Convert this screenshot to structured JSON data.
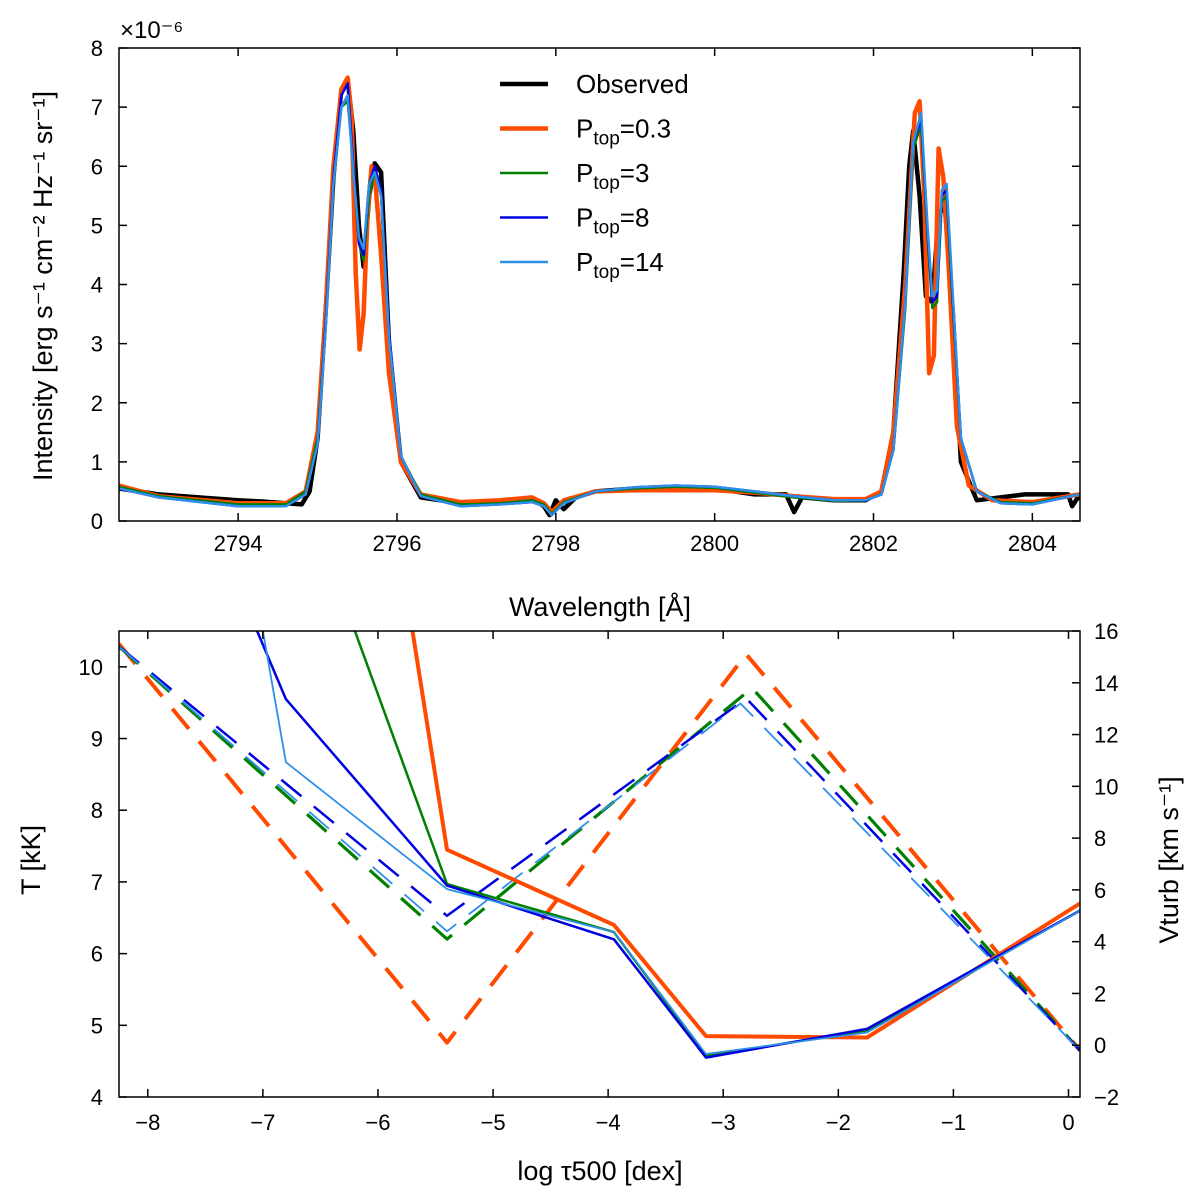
{
  "chart_data": [
    {
      "type": "line",
      "title": "",
      "xlabel": "Wavelength [Å]",
      "ylabel": "Intensity [erg s⁻¹ cm⁻² Hz⁻¹ sr⁻¹]",
      "y_multiplier": "×10⁻⁶",
      "xlim": [
        2792.5,
        2804.6
      ],
      "ylim": [
        0,
        8
      ],
      "xticks": [
        2794,
        2796,
        2798,
        2800,
        2802,
        2804
      ],
      "yticks": [
        0,
        1,
        2,
        3,
        4,
        5,
        6,
        7,
        8
      ],
      "legend": {
        "position": "top-center",
        "entries": [
          {
            "label": "Observed",
            "base": "Observed",
            "sub": "",
            "suffix": "",
            "color": "#000000"
          },
          {
            "label": "Ptop=0.3",
            "base": "P",
            "sub": "top",
            "suffix": "=0.3",
            "color": "#ff4b00"
          },
          {
            "label": "Ptop=3",
            "base": "P",
            "sub": "top",
            "suffix": "=3",
            "color": "#008000"
          },
          {
            "label": "Ptop=8",
            "base": "P",
            "sub": "top",
            "suffix": "=8",
            "color": "#0000e0"
          },
          {
            "label": "Ptop=14",
            "base": "P",
            "sub": "top",
            "suffix": "=14",
            "color": "#2e8fe8"
          }
        ]
      },
      "series": [
        {
          "name": "Observed",
          "color": "#000000",
          "width": 4.5,
          "x": [
            2792.5,
            2793.0,
            2793.5,
            2794.0,
            2794.3,
            2794.6,
            2794.8,
            2794.9,
            2795.0,
            2795.1,
            2795.2,
            2795.3,
            2795.38,
            2795.45,
            2795.52,
            2795.58,
            2795.65,
            2795.72,
            2795.8,
            2795.9,
            2796.05,
            2796.3,
            2796.8,
            2797.3,
            2797.7,
            2797.85,
            2797.92,
            2798.0,
            2798.1,
            2798.25,
            2798.5,
            2799.0,
            2799.5,
            2800.0,
            2800.5,
            2800.9,
            2801.0,
            2801.1,
            2801.5,
            2801.9,
            2802.1,
            2802.25,
            2802.38,
            2802.45,
            2802.5,
            2802.58,
            2802.66,
            2802.74,
            2802.82,
            2802.9,
            2803.0,
            2803.1,
            2803.3,
            2803.6,
            2803.9,
            2804.2,
            2804.45,
            2804.5,
            2804.6
          ],
          "y": [
            0.55,
            0.45,
            0.4,
            0.35,
            0.33,
            0.3,
            0.28,
            0.5,
            1.4,
            3.5,
            5.8,
            7.3,
            7.45,
            6.6,
            5.0,
            4.3,
            5.5,
            6.05,
            5.9,
            3.0,
            1.0,
            0.4,
            0.3,
            0.32,
            0.38,
            0.25,
            0.1,
            0.35,
            0.2,
            0.4,
            0.5,
            0.55,
            0.55,
            0.55,
            0.45,
            0.45,
            0.15,
            0.4,
            0.35,
            0.35,
            0.5,
            1.5,
            4.2,
            6.0,
            6.6,
            5.5,
            3.8,
            3.7,
            5.2,
            5.3,
            3.5,
            1.0,
            0.35,
            0.4,
            0.45,
            0.45,
            0.45,
            0.25,
            0.45
          ]
        },
        {
          "name": "Ptop=0.3",
          "color": "#ff4b00",
          "width": 4.5,
          "x": [
            2792.5,
            2793.0,
            2794.0,
            2794.6,
            2794.85,
            2795.0,
            2795.1,
            2795.2,
            2795.3,
            2795.38,
            2795.43,
            2795.48,
            2795.53,
            2795.58,
            2795.63,
            2795.68,
            2795.73,
            2795.8,
            2795.9,
            2796.05,
            2796.3,
            2796.8,
            2797.3,
            2797.7,
            2797.85,
            2797.95,
            2798.1,
            2798.5,
            2799.0,
            2799.5,
            2800.0,
            2800.5,
            2801.0,
            2801.5,
            2801.9,
            2802.1,
            2802.25,
            2802.4,
            2802.52,
            2802.58,
            2802.64,
            2802.7,
            2802.76,
            2802.82,
            2802.88,
            2802.95,
            2803.05,
            2803.2,
            2803.5,
            2804.0,
            2804.6
          ],
          "y": [
            0.6,
            0.42,
            0.3,
            0.3,
            0.5,
            1.5,
            3.5,
            6.0,
            7.3,
            7.5,
            6.8,
            4.2,
            2.9,
            3.5,
            5.2,
            6.0,
            5.7,
            4.5,
            2.5,
            1.0,
            0.45,
            0.32,
            0.35,
            0.4,
            0.3,
            0.15,
            0.35,
            0.5,
            0.52,
            0.52,
            0.52,
            0.48,
            0.42,
            0.37,
            0.37,
            0.5,
            1.5,
            4.0,
            6.9,
            7.1,
            5.5,
            2.5,
            2.8,
            6.3,
            5.8,
            4.2,
            1.6,
            0.6,
            0.35,
            0.32,
            0.45
          ]
        },
        {
          "name": "Ptop=3",
          "color": "#008000",
          "width": 2.5,
          "x": [
            2792.5,
            2793.0,
            2794.0,
            2794.6,
            2794.85,
            2795.0,
            2795.1,
            2795.2,
            2795.3,
            2795.38,
            2795.45,
            2795.52,
            2795.58,
            2795.65,
            2795.72,
            2795.8,
            2795.9,
            2796.05,
            2796.3,
            2796.8,
            2797.3,
            2797.7,
            2797.85,
            2797.95,
            2798.1,
            2798.5,
            2799.0,
            2799.5,
            2800.0,
            2800.5,
            2801.0,
            2801.5,
            2801.9,
            2802.1,
            2802.25,
            2802.4,
            2802.5,
            2802.6,
            2802.68,
            2802.74,
            2802.8,
            2802.86,
            2802.92,
            2803.0,
            2803.1,
            2803.3,
            2803.6,
            2804.0,
            2804.6
          ],
          "y": [
            0.58,
            0.42,
            0.28,
            0.28,
            0.5,
            1.4,
            3.3,
            5.7,
            7.0,
            7.1,
            6.0,
            4.7,
            4.4,
            5.5,
            5.9,
            5.5,
            3.2,
            1.1,
            0.45,
            0.28,
            0.3,
            0.35,
            0.28,
            0.12,
            0.32,
            0.5,
            0.55,
            0.58,
            0.56,
            0.48,
            0.4,
            0.34,
            0.35,
            0.45,
            1.2,
            3.6,
            6.3,
            6.7,
            4.8,
            3.6,
            3.7,
            5.4,
            5.5,
            3.6,
            1.4,
            0.5,
            0.32,
            0.3,
            0.45
          ]
        },
        {
          "name": "Ptop=8",
          "color": "#0000e0",
          "width": 2.5,
          "x": [
            2792.5,
            2793.0,
            2794.0,
            2794.6,
            2794.85,
            2795.0,
            2795.1,
            2795.2,
            2795.3,
            2795.38,
            2795.45,
            2795.52,
            2795.58,
            2795.65,
            2795.72,
            2795.8,
            2795.9,
            2796.05,
            2796.3,
            2796.8,
            2797.3,
            2797.7,
            2797.85,
            2797.95,
            2798.1,
            2798.5,
            2799.0,
            2799.5,
            2800.0,
            2800.5,
            2801.0,
            2801.5,
            2801.9,
            2802.1,
            2802.25,
            2802.4,
            2802.5,
            2802.6,
            2802.68,
            2802.74,
            2802.8,
            2802.86,
            2802.92,
            2803.0,
            2803.1,
            2803.3,
            2803.6,
            2804.0,
            2804.6
          ],
          "y": [
            0.55,
            0.4,
            0.25,
            0.25,
            0.45,
            1.3,
            3.3,
            5.8,
            7.2,
            7.4,
            6.0,
            4.7,
            4.5,
            5.7,
            6.0,
            5.6,
            3.2,
            1.1,
            0.42,
            0.25,
            0.28,
            0.32,
            0.25,
            0.1,
            0.3,
            0.5,
            0.57,
            0.6,
            0.58,
            0.5,
            0.42,
            0.35,
            0.35,
            0.45,
            1.2,
            3.7,
            6.4,
            6.8,
            4.9,
            3.7,
            3.8,
            5.5,
            5.6,
            3.7,
            1.4,
            0.5,
            0.3,
            0.28,
            0.45
          ]
        },
        {
          "name": "Ptop=14",
          "color": "#2e8fe8",
          "width": 2.5,
          "x": [
            2792.5,
            2793.0,
            2794.0,
            2794.6,
            2794.85,
            2795.0,
            2795.1,
            2795.2,
            2795.3,
            2795.38,
            2795.45,
            2795.52,
            2795.58,
            2795.65,
            2795.72,
            2795.8,
            2795.9,
            2796.05,
            2796.3,
            2796.8,
            2797.3,
            2797.7,
            2797.85,
            2797.95,
            2798.1,
            2798.5,
            2799.0,
            2799.5,
            2800.0,
            2800.5,
            2801.0,
            2801.5,
            2801.9,
            2802.1,
            2802.25,
            2802.4,
            2802.5,
            2802.6,
            2802.68,
            2802.74,
            2802.8,
            2802.86,
            2802.92,
            2803.0,
            2803.1,
            2803.3,
            2803.6,
            2804.0,
            2804.6
          ],
          "y": [
            0.55,
            0.4,
            0.25,
            0.25,
            0.45,
            1.3,
            3.2,
            5.7,
            7.0,
            7.2,
            5.9,
            4.8,
            4.6,
            5.7,
            5.9,
            5.5,
            3.1,
            1.1,
            0.42,
            0.25,
            0.28,
            0.32,
            0.25,
            0.1,
            0.3,
            0.5,
            0.57,
            0.6,
            0.58,
            0.5,
            0.42,
            0.35,
            0.35,
            0.45,
            1.2,
            3.7,
            6.4,
            6.9,
            5.0,
            3.8,
            3.9,
            5.6,
            5.7,
            3.8,
            1.4,
            0.5,
            0.3,
            0.28,
            0.45
          ]
        }
      ]
    },
    {
      "type": "line",
      "title": "",
      "xlabel": "log τ500 [dex]",
      "ylabel_left": "T [kK]",
      "ylabel_right": "Vturb [km s⁻¹]",
      "xlim": [
        -8.25,
        0.1
      ],
      "ylim_left": [
        4,
        10.5
      ],
      "ylim_right": [
        -2,
        16
      ],
      "xticks": [
        -8,
        -7,
        -6,
        -5,
        -4,
        -3,
        -2,
        -1,
        0
      ],
      "yticks_left": [
        4,
        5,
        6,
        7,
        8,
        9,
        10
      ],
      "yticks_right": [
        -2,
        0,
        2,
        4,
        6,
        8,
        10,
        12,
        14,
        16
      ],
      "temperature_series": [
        {
          "name": "Ptop=0.3",
          "color": "#ff4b00",
          "width": 4,
          "x": [
            -5.7,
            -5.4,
            -3.95,
            -3.15,
            -1.75,
            0.1
          ],
          "y": [
            10.5,
            7.45,
            6.4,
            4.85,
            4.83,
            6.7
          ]
        },
        {
          "name": "Ptop=3",
          "color": "#008000",
          "width": 2.5,
          "x": [
            -6.2,
            -5.4,
            -3.95,
            -3.15,
            -1.75,
            0.1
          ],
          "y": [
            10.5,
            6.97,
            6.3,
            4.57,
            4.93,
            6.6
          ]
        },
        {
          "name": "Ptop=8",
          "color": "#0000e0",
          "width": 2.5,
          "x": [
            -7.05,
            -6.8,
            -5.4,
            -3.95,
            -3.15,
            -1.75,
            0.1
          ],
          "y": [
            10.5,
            9.55,
            6.95,
            6.2,
            4.55,
            4.95,
            6.6
          ]
        },
        {
          "name": "Ptop=14",
          "color": "#2e8fe8",
          "width": 1.8,
          "x": [
            -7.0,
            -6.8,
            -5.4,
            -3.95,
            -3.15,
            -1.75,
            0.1
          ],
          "y": [
            10.5,
            8.67,
            6.9,
            6.3,
            4.6,
            4.9,
            6.6
          ]
        }
      ],
      "vturb_series": [
        {
          "name": "Ptop=0.3",
          "color": "#ff4b00",
          "width": 4,
          "x": [
            -8.25,
            -5.4,
            -2.8,
            0.1
          ],
          "y": [
            15.5,
            0.1,
            15.1,
            -0.2
          ]
        },
        {
          "name": "Ptop=3",
          "color": "#008000",
          "width": 3.2,
          "x": [
            -8.25,
            -5.4,
            -2.75,
            0.1
          ],
          "y": [
            15.4,
            4.1,
            13.8,
            -0.2
          ]
        },
        {
          "name": "Ptop=8",
          "color": "#0000e0",
          "width": 2.5,
          "x": [
            -8.25,
            -5.4,
            -2.8,
            0.1
          ],
          "y": [
            15.4,
            5.0,
            13.4,
            -0.2
          ]
        },
        {
          "name": "Ptop=14",
          "color": "#2e8fe8",
          "width": 1.8,
          "x": [
            -8.25,
            -5.4,
            -2.85,
            0.1
          ],
          "y": [
            15.4,
            4.4,
            13.2,
            -0.2
          ]
        }
      ]
    }
  ]
}
